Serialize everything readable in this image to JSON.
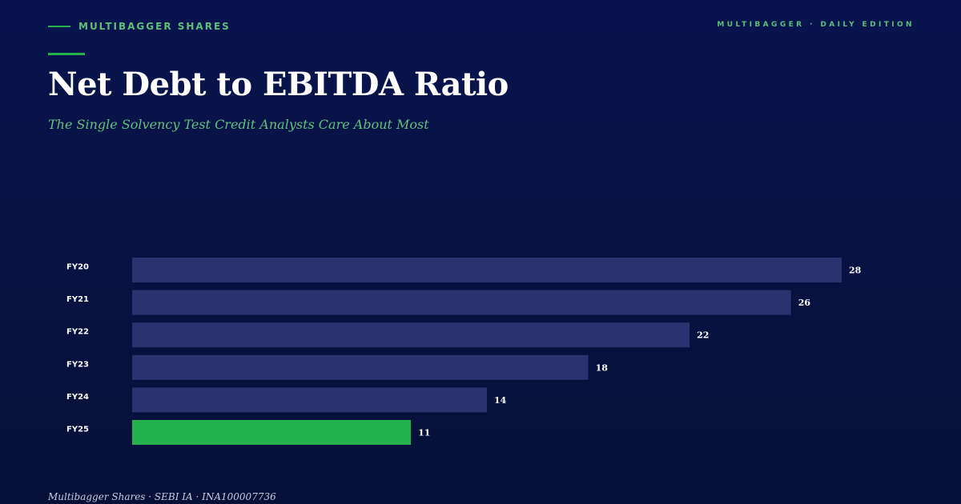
{
  "header": {
    "brand": "MULTIBAGGER SHARES",
    "edition": "MULTIBAGGER · DAILY EDITION"
  },
  "chart_data": {
    "type": "bar",
    "orientation": "horizontal",
    "title": "Net Debt to EBITDA Ratio",
    "subtitle": "The Single Solvency Test Credit Analysts Care About Most",
    "categories": [
      "FY20",
      "FY21",
      "FY22",
      "FY23",
      "FY24",
      "FY25"
    ],
    "values": [
      28,
      26,
      22,
      18,
      14,
      11
    ],
    "xlim": [
      0,
      28
    ],
    "grid": false,
    "colors": {
      "bar": "#283370",
      "highlight": "#22b14c"
    },
    "highlight_category": "FY25"
  },
  "footer": {
    "text": "Multibagger Shares · SEBI IA · INA100007736"
  }
}
